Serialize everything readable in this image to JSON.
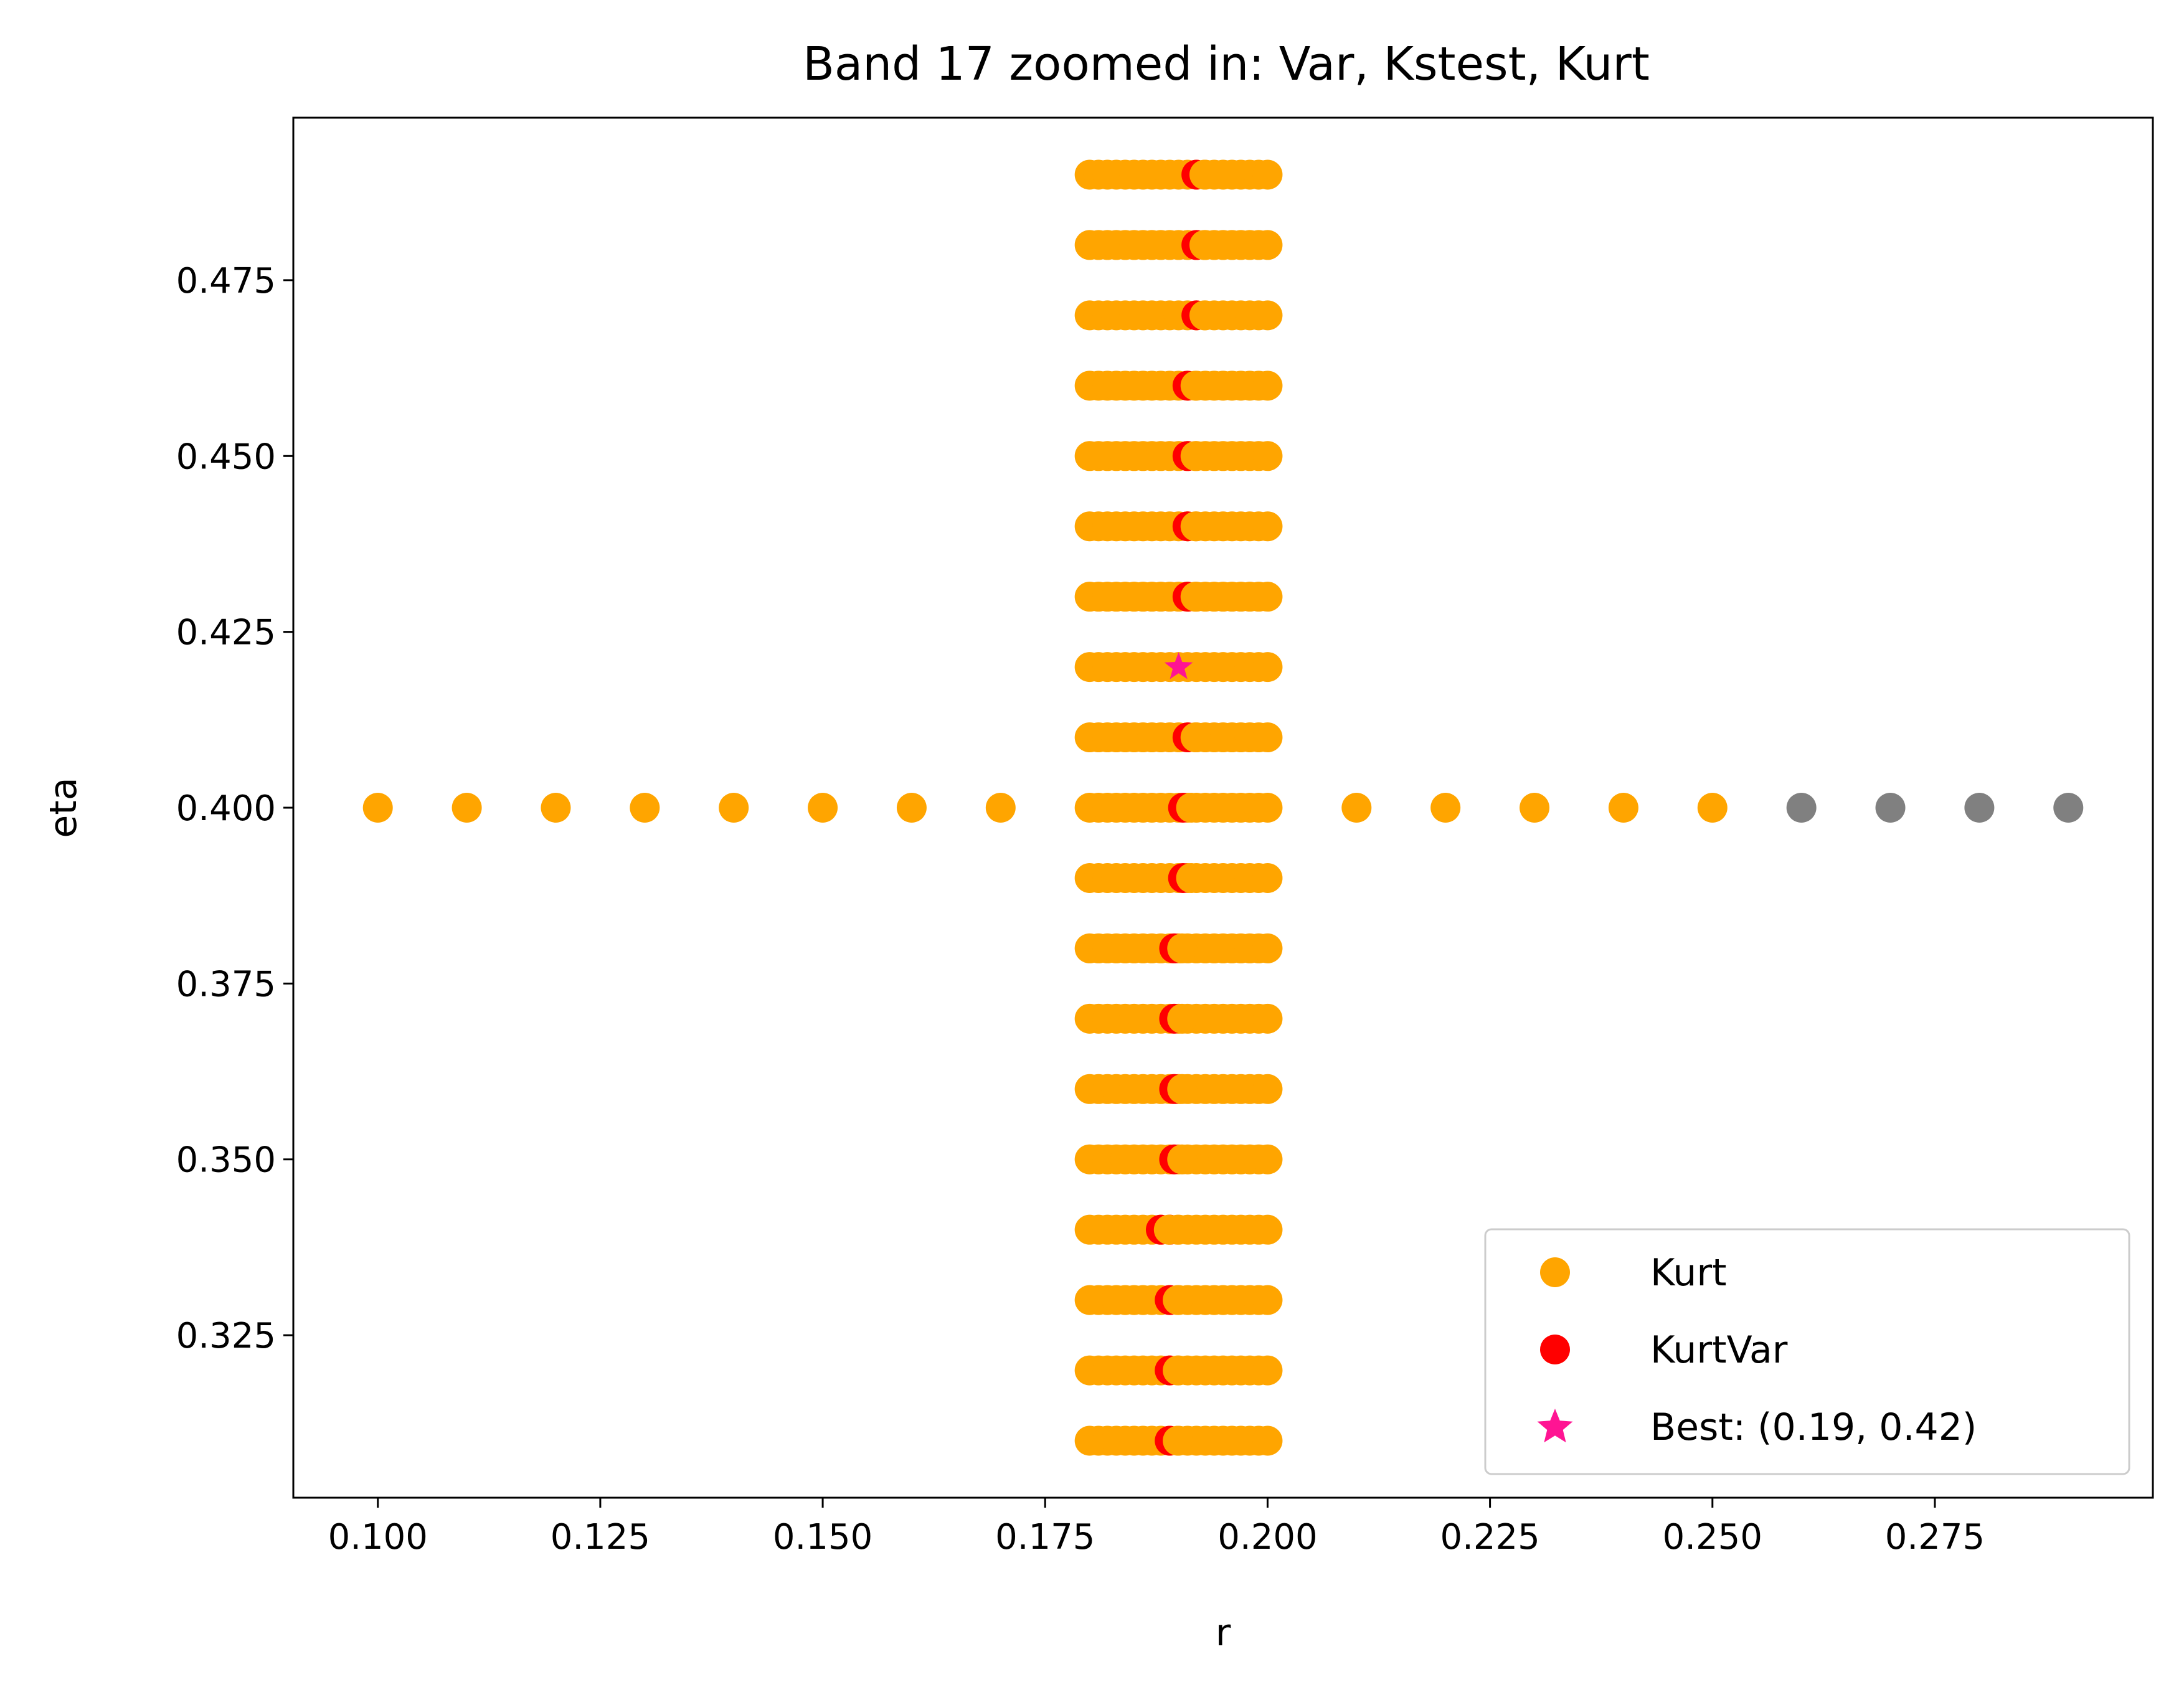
{
  "chart_data": {
    "type": "scatter",
    "title": "Band 17 zoomed in: Var, Kstest, Kurt",
    "xlabel": "r",
    "ylabel": "eta",
    "xlim": [
      0.0905,
      0.2995
    ],
    "ylim": [
      0.3019,
      0.4981
    ],
    "xticks": [
      0.1,
      0.125,
      0.15,
      0.175,
      0.2,
      0.225,
      0.25,
      0.275
    ],
    "xtick_labels": [
      "0.100",
      "0.125",
      "0.150",
      "0.175",
      "0.200",
      "0.225",
      "0.250",
      "0.275"
    ],
    "yticks": [
      0.325,
      0.35,
      0.375,
      0.4,
      0.425,
      0.45,
      0.475
    ],
    "ytick_labels": [
      "0.325",
      "0.350",
      "0.375",
      "0.400",
      "0.425",
      "0.450",
      "0.475"
    ],
    "grid": false,
    "legend_position": "bottom-right",
    "colors": {
      "kurt": "#ffa500",
      "kurtvar": "#ff0000",
      "best": "#ff1493",
      "other": "#808080"
    },
    "grid_block": {
      "r_min": 0.18,
      "r_max": 0.2,
      "r_step": 0.001,
      "eta_values": [
        0.31,
        0.32,
        0.33,
        0.34,
        0.35,
        0.36,
        0.37,
        0.38,
        0.39,
        0.4,
        0.41,
        0.42,
        0.43,
        0.44,
        0.45,
        0.46,
        0.47,
        0.48,
        0.49
      ]
    },
    "series": [
      {
        "name": "",
        "color": "#808080",
        "points": [
          [
            0.26,
            0.4
          ],
          [
            0.27,
            0.4
          ],
          [
            0.28,
            0.4
          ],
          [
            0.29,
            0.4
          ]
        ]
      },
      {
        "name": "Kurt",
        "color": "#ffa500",
        "points": [
          [
            0.1,
            0.4
          ],
          [
            0.11,
            0.4
          ],
          [
            0.12,
            0.4
          ],
          [
            0.13,
            0.4
          ],
          [
            0.14,
            0.4
          ],
          [
            0.15,
            0.4
          ],
          [
            0.16,
            0.4
          ],
          [
            0.17,
            0.4
          ],
          [
            0.21,
            0.4
          ],
          [
            0.22,
            0.4
          ],
          [
            0.23,
            0.4
          ],
          [
            0.24,
            0.4
          ],
          [
            0.25,
            0.4
          ]
        ]
      },
      {
        "name": "KurtVar",
        "color": "#ff0000",
        "points": [
          [
            0.189,
            0.31
          ],
          [
            0.189,
            0.32
          ],
          [
            0.189,
            0.33
          ],
          [
            0.189,
            0.34
          ],
          [
            0.188,
            0.34
          ],
          [
            0.1895,
            0.35
          ],
          [
            0.1895,
            0.36
          ],
          [
            0.1895,
            0.37
          ],
          [
            0.1895,
            0.38
          ],
          [
            0.1905,
            0.39
          ],
          [
            0.1905,
            0.4
          ],
          [
            0.191,
            0.41
          ],
          [
            0.191,
            0.43
          ],
          [
            0.191,
            0.44
          ],
          [
            0.191,
            0.45
          ],
          [
            0.191,
            0.46
          ],
          [
            0.192,
            0.47
          ],
          [
            0.192,
            0.48
          ],
          [
            0.192,
            0.49
          ]
        ]
      },
      {
        "name": "Best: (0.19, 0.42)",
        "color": "#ff1493",
        "marker": "star",
        "points": [
          [
            0.19,
            0.42
          ]
        ]
      }
    ]
  }
}
